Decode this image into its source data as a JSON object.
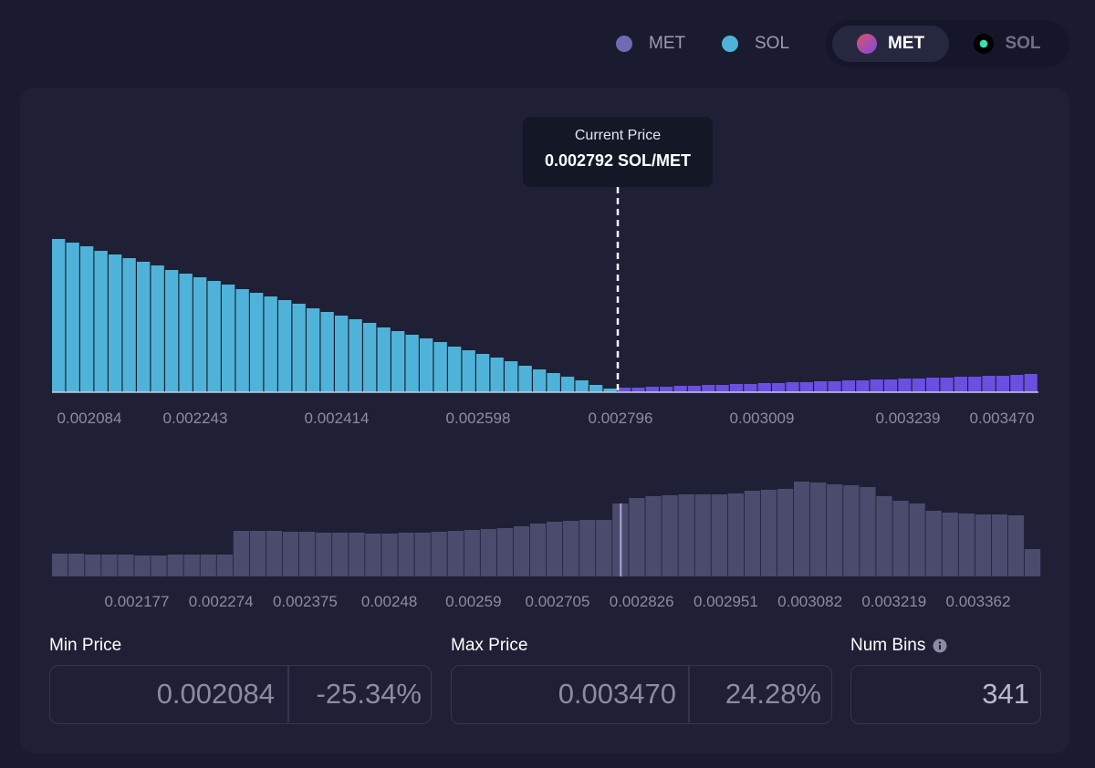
{
  "legend": [
    {
      "label": "MET",
      "color": "#6e6ab3"
    },
    {
      "label": "SOL",
      "color": "#4fb3d9"
    }
  ],
  "toggle": {
    "options": [
      "MET",
      "SOL"
    ],
    "selected": 0
  },
  "price_chart": {
    "tooltip_title": "Current Price",
    "tooltip_value": "0.002792 SOL/MET",
    "sol_color": "#4fb3d9",
    "met_color": "#6a4fe0",
    "sol_values": [
      168,
      164,
      160,
      155,
      151,
      147,
      143,
      139,
      134,
      130,
      126,
      122,
      118,
      113,
      109,
      105,
      101,
      97,
      92,
      88,
      84,
      80,
      76,
      71,
      67,
      63,
      59,
      55,
      50,
      46,
      42,
      38,
      34,
      29,
      25,
      21,
      17,
      13,
      8,
      4
    ],
    "met_values": [
      5,
      5,
      6,
      6,
      7,
      7,
      8,
      8,
      9,
      9,
      10,
      10,
      11,
      11,
      12,
      12,
      13,
      13,
      14,
      14,
      15,
      15,
      16,
      16,
      17,
      17,
      18,
      18,
      19,
      20
    ],
    "x_labels": [
      "0.002084",
      "0.002243",
      "0.002414",
      "0.002598",
      "0.002796",
      "0.003009",
      "0.003239",
      "0.003470"
    ]
  },
  "volume_chart": {
    "color": "#4b4b6e",
    "highlight_color": "#aaa5d8",
    "highlight_index": 34,
    "values": [
      25,
      25,
      24,
      24,
      24,
      23,
      23,
      24,
      24,
      24,
      24,
      50,
      50,
      50,
      49,
      49,
      48,
      48,
      48,
      47,
      47,
      48,
      48,
      49,
      50,
      51,
      52,
      53,
      55,
      58,
      60,
      61,
      62,
      62,
      80,
      86,
      88,
      89,
      90,
      90,
      90,
      91,
      94,
      95,
      96,
      104,
      103,
      101,
      100,
      98,
      88,
      83,
      80,
      72,
      70,
      69,
      68,
      68,
      67,
      30
    ],
    "x_labels": [
      "0.002177",
      "0.002274",
      "0.002375",
      "0.00248",
      "0.00259",
      "0.002705",
      "0.002826",
      "0.002951",
      "0.003082",
      "0.003219",
      "0.003362"
    ]
  },
  "inputs": {
    "min_price": {
      "label": "Min Price",
      "value": "0.002084",
      "change": "-25.34%"
    },
    "max_price": {
      "label": "Max Price",
      "value": "0.003470",
      "change": "24.28%"
    },
    "num_bins": {
      "label": "Num Bins",
      "value": "341"
    }
  }
}
